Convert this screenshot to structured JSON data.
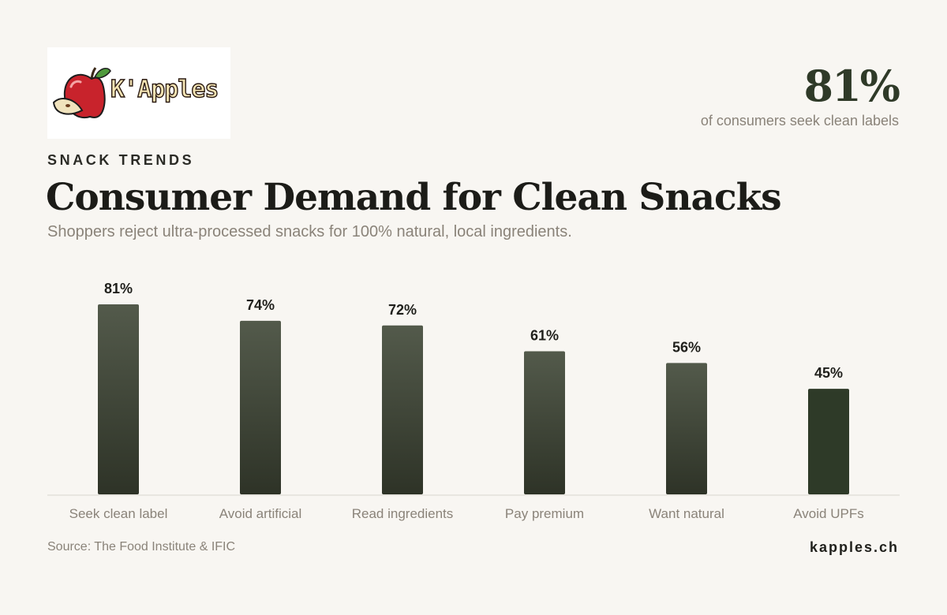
{
  "brand": {
    "logo_text": "K'Apples",
    "site": "kapples.ch"
  },
  "highlight": {
    "value": "81%",
    "caption": "of consumers seek clean labels"
  },
  "header": {
    "eyebrow": "SNACK TRENDS",
    "title": "Consumer Demand for Clean Snacks",
    "subtitle": "Shoppers reject ultra-processed snacks for 100% natural, local ingredients."
  },
  "footer": {
    "source": "Source: The Food Institute & IFIC"
  },
  "colors": {
    "bar_top": "#535a4b",
    "bar_bottom": "#2e3327",
    "bar_highlight": "#2e3a28",
    "axis": "#d9d5cd",
    "label": "#8a8379",
    "value_label": "#1f1f1b"
  },
  "chart_data": {
    "type": "bar",
    "title": "Consumer Demand for Clean Snacks",
    "categories": [
      "Seek clean label",
      "Avoid artificial",
      "Read ingredients",
      "Pay premium",
      "Want natural",
      "Avoid UPFs"
    ],
    "values": [
      81,
      74,
      72,
      61,
      56,
      45
    ],
    "value_labels": [
      "81%",
      "74%",
      "72%",
      "61%",
      "56%",
      "45%"
    ],
    "unit": "%",
    "ylim": [
      0,
      81
    ],
    "grid": false,
    "highlighted_category": "Avoid UPFs"
  }
}
